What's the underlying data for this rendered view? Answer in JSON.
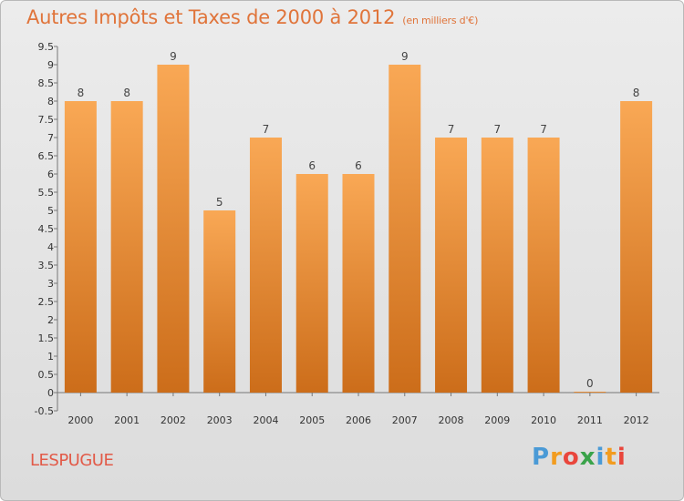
{
  "header": {
    "title": "Autres Impôts et Taxes de 2000 à 2012",
    "unit": "(en milliers d'€)"
  },
  "footer": {
    "place": "LESPUGUE",
    "logo_letters": [
      "P",
      "r",
      "o",
      "x",
      "i",
      "t",
      "i"
    ],
    "logo_colors": [
      "#4a9ad6",
      "#f29c1f",
      "#e9463c",
      "#3aa34a",
      "#4a9ad6",
      "#f29c1f",
      "#e9463c"
    ]
  },
  "chart_data": {
    "type": "bar",
    "title": "Autres Impôts et Taxes de 2000 à 2012",
    "categories": [
      "2000",
      "2001",
      "2002",
      "2003",
      "2004",
      "2005",
      "2006",
      "2007",
      "2008",
      "2009",
      "2010",
      "2011",
      "2012"
    ],
    "values": [
      8,
      8,
      9,
      5,
      7,
      6,
      6,
      9,
      7,
      7,
      7,
      0,
      8
    ],
    "value_labels": [
      "8",
      "8",
      "9",
      "5",
      "7",
      "6",
      "6",
      "9",
      "7",
      "7",
      "7",
      "0",
      "8"
    ],
    "y_ticks": [
      "9.5",
      "9",
      "8.5",
      "8",
      "7.5",
      "7",
      "6.5",
      "6",
      "5.5",
      "5",
      "4.5",
      "4",
      "3.5",
      "3",
      "2.5",
      "2",
      "1.5",
      "1",
      "0.5",
      "0",
      "-0.5"
    ],
    "ylim": [
      -0.5,
      9.5
    ],
    "grid": false,
    "bar_color_top": "#f9a855",
    "bar_color_bottom": "#cc6d1a"
  }
}
